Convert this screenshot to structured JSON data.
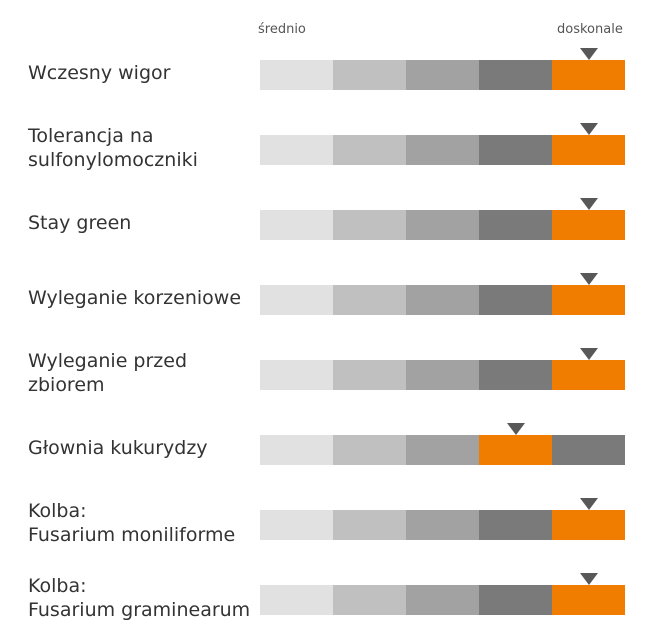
{
  "scale": {
    "min_label": "średnio",
    "max_label": "doskonale"
  },
  "colors": {
    "level_1": "#e1e1e1",
    "level_2": "#c0c0c0",
    "level_3": "#a2a2a2",
    "level_4": "#7a7a7a",
    "level_5": "#5a5654",
    "highlight": "#f07d00",
    "marker": "#585858"
  },
  "chart_data": {
    "type": "table",
    "levels": 5,
    "rows": [
      {
        "label": "Wczesny wigor",
        "level": 4,
        "hatched_level": null
      },
      {
        "label": "Tolerancja na\nsulfonylomoczniki",
        "level": 4,
        "hatched_level": null
      },
      {
        "label": "Stay green",
        "level": 4,
        "hatched_level": null
      },
      {
        "label": "Wyleganie korzeniowe",
        "level": 4,
        "hatched_level": null
      },
      {
        "label": "Wyleganie przed\nzbiorem",
        "level": 4,
        "hatched_level": null
      },
      {
        "label": "Głownia kukurydzy",
        "level": 3,
        "hatched_level": 4
      },
      {
        "label": "Kolba:\nFusarium moniliforme",
        "level": 4,
        "hatched_level": null
      },
      {
        "label": "Kolba:\nFusarium graminearum",
        "level": 4,
        "hatched_level": null
      }
    ]
  }
}
